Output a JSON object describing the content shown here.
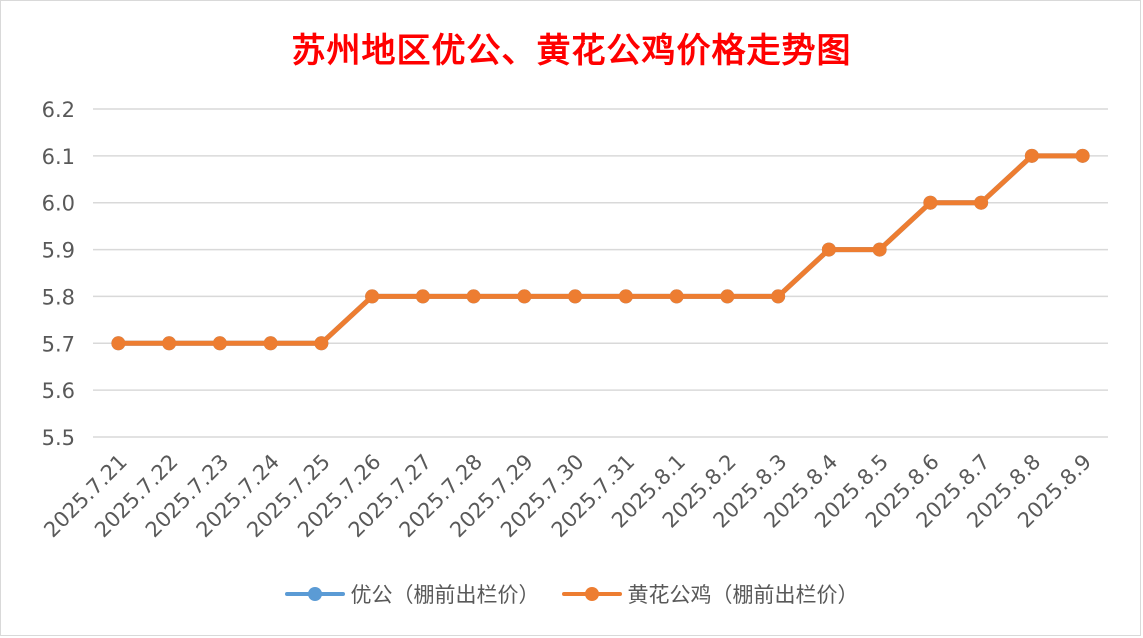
{
  "chart_data": {
    "type": "line",
    "title": "苏州地区优公、黄花公鸡价格走势图",
    "categories": [
      "2025.7.21",
      "2025.7.22",
      "2025.7.23",
      "2025.7.24",
      "2025.7.25",
      "2025.7.26",
      "2025.7.27",
      "2025.7.28",
      "2025.7.29",
      "2025.7.30",
      "2025.7.31",
      "2025.8.1",
      "2025.8.2",
      "2025.8.3",
      "2025.8.4",
      "2025.8.5",
      "2025.8.6",
      "2025.8.7",
      "2025.8.8",
      "2025.8.9"
    ],
    "series": [
      {
        "name": "优公（棚前出栏价）",
        "color": "#5b9bd5",
        "values": [
          5.7,
          5.7,
          5.7,
          5.7,
          5.7,
          5.8,
          5.8,
          5.8,
          5.8,
          5.8,
          5.8,
          5.8,
          5.8,
          5.8,
          5.9,
          5.9,
          6.0,
          6.0,
          6.1,
          6.1
        ]
      },
      {
        "name": "黄花公鸡（棚前出栏价）",
        "color": "#ed7d31",
        "values": [
          5.7,
          5.7,
          5.7,
          5.7,
          5.7,
          5.8,
          5.8,
          5.8,
          5.8,
          5.8,
          5.8,
          5.8,
          5.8,
          5.8,
          5.9,
          5.9,
          6.0,
          6.0,
          6.1,
          6.1
        ]
      }
    ],
    "ylim": [
      5.5,
      6.2
    ],
    "yticks": [
      "6.2",
      "6.1",
      "6.0",
      "5.9",
      "5.8",
      "5.7",
      "5.6",
      "5.5"
    ],
    "grid": true,
    "legend_position": "bottom",
    "xlabel": "",
    "ylabel": ""
  }
}
